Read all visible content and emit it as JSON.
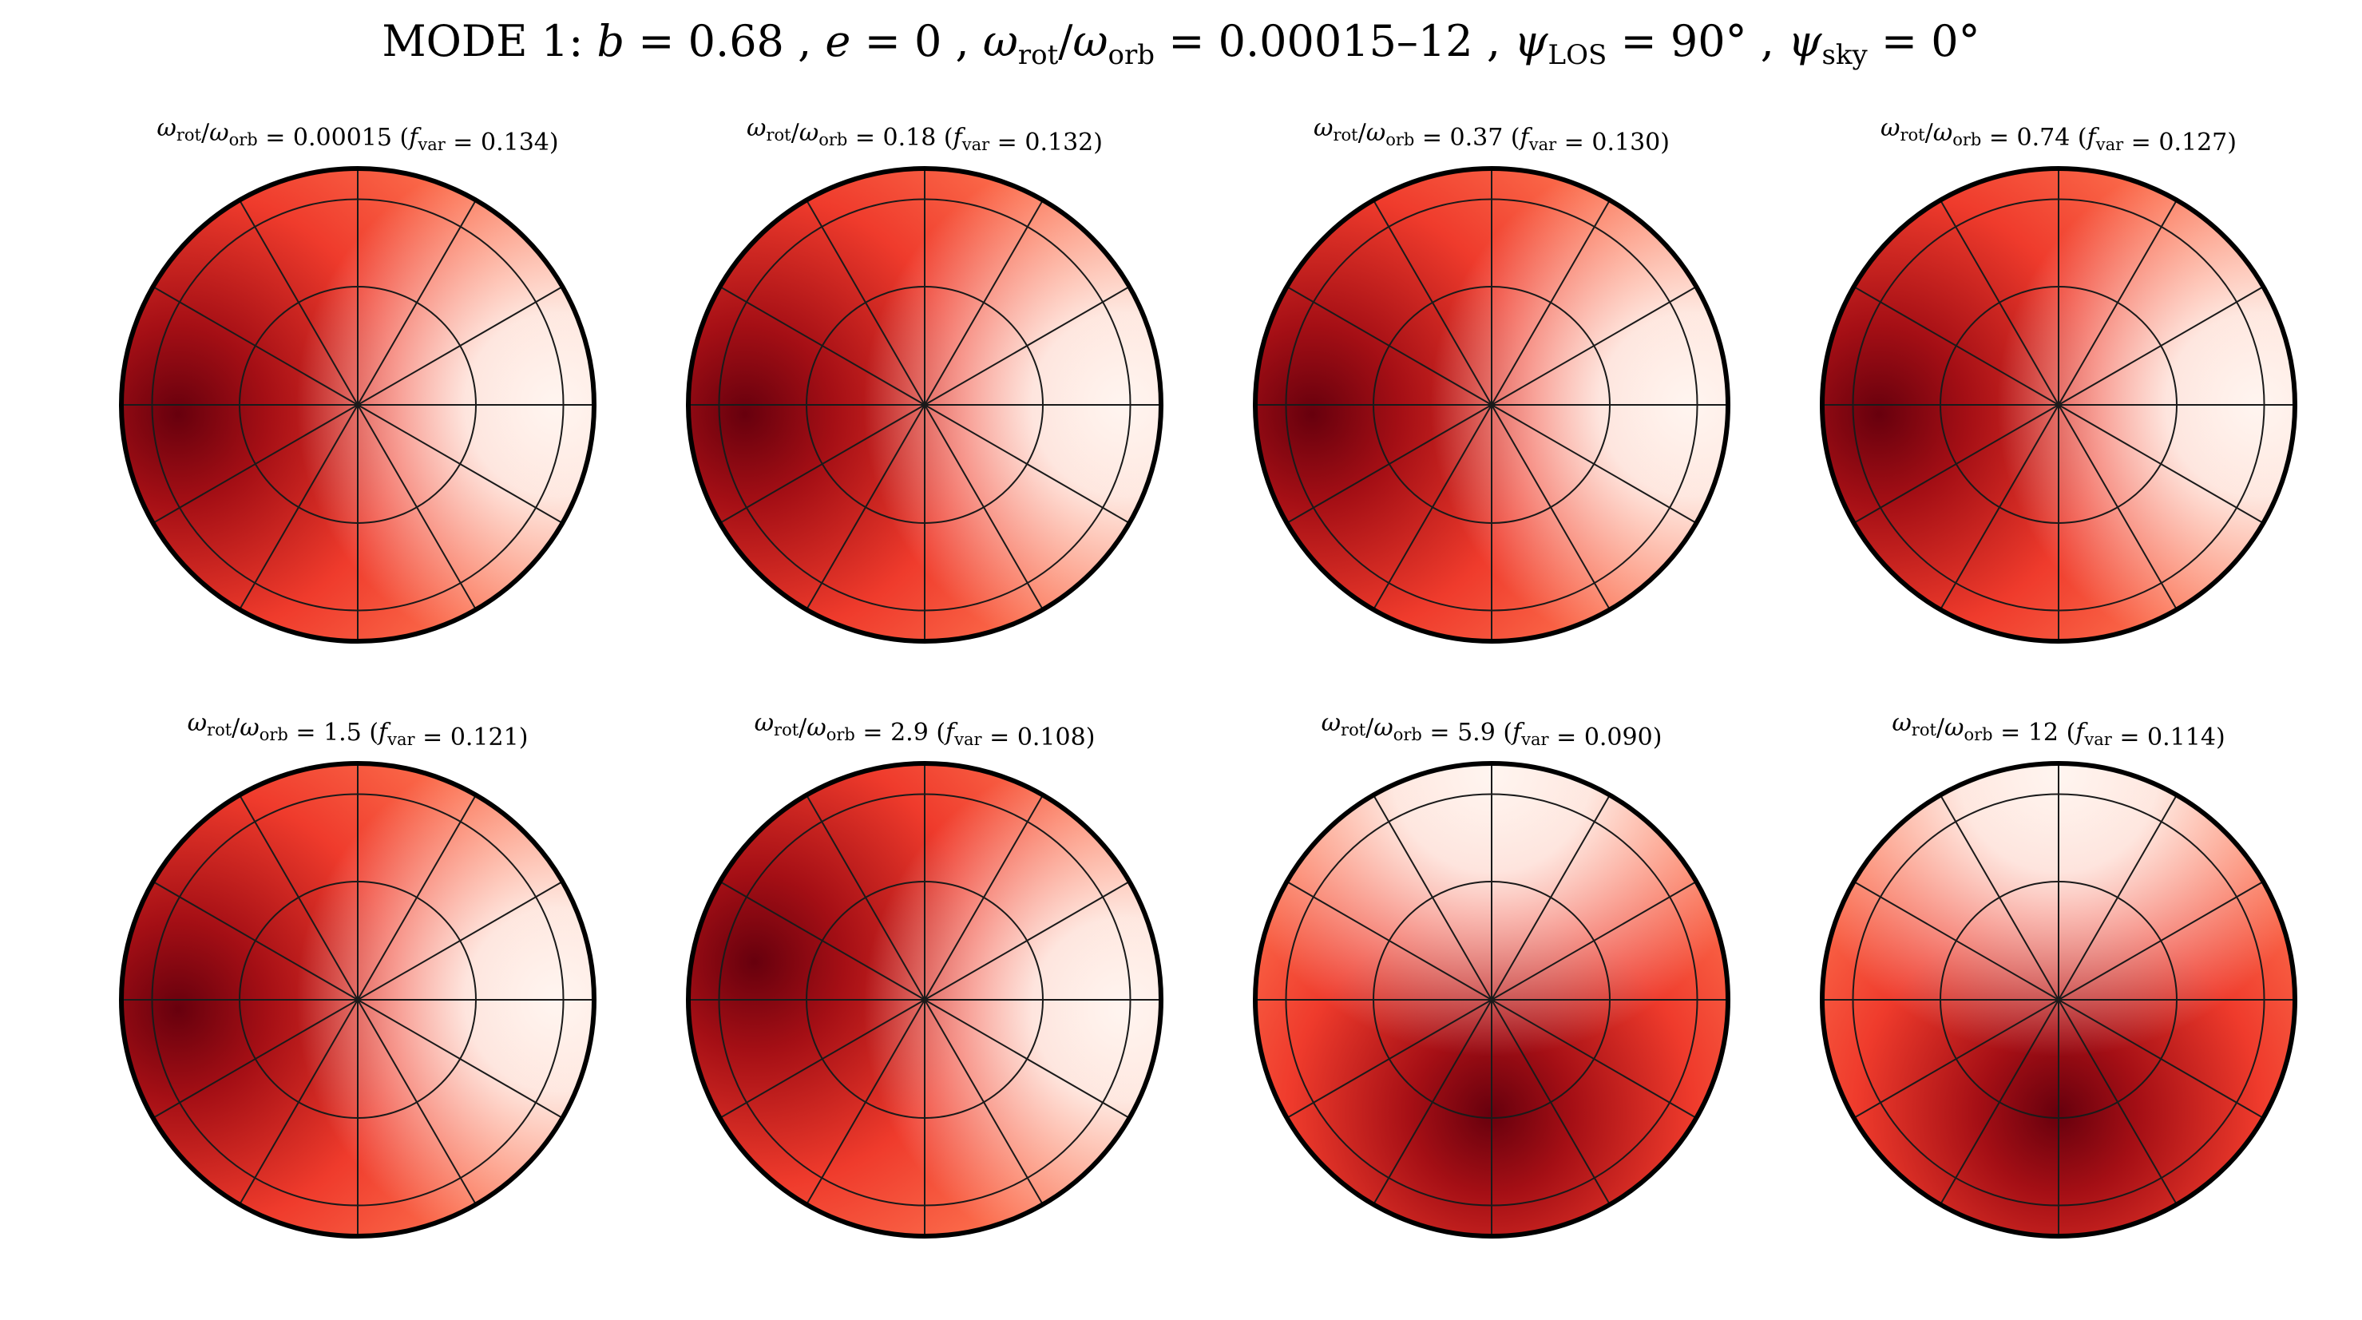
{
  "figure": {
    "title": "MODE 1: b = 0.68, e = 0, ω_rot/ω_orb = 0.00015–12, ψ_LOS = 90°, ψ_sky = 0°",
    "title_parts": {
      "mode": "MODE 1:",
      "b_label": "b",
      "b_value": "0.68",
      "e_label": "e",
      "e_value": "0",
      "ratio_value": "0.00015–12",
      "psi_los_value": "90°",
      "psi_sky_value": "0°"
    },
    "colormap": {
      "name": "Reds",
      "light": "#fff5f0",
      "mid": "#fb6a4a",
      "dark": "#67000d"
    },
    "grid": {
      "latitude_circles": 2,
      "meridian_spokes": 12
    }
  },
  "panels": [
    {
      "ratio": "0.00015",
      "fvar": "0.134",
      "title": "ω_rot/ω_orb = 0.00015 (f_var = 0.134)",
      "hotspot_direction": "left"
    },
    {
      "ratio": "0.18",
      "fvar": "0.132",
      "title": "ω_rot/ω_orb = 0.18 (f_var = 0.132)",
      "hotspot_direction": "left"
    },
    {
      "ratio": "0.37",
      "fvar": "0.130",
      "title": "ω_rot/ω_orb = 0.37 (f_var = 0.130)",
      "hotspot_direction": "left"
    },
    {
      "ratio": "0.74",
      "fvar": "0.127",
      "title": "ω_rot/ω_orb = 0.74 (f_var = 0.127)",
      "hotspot_direction": "left"
    },
    {
      "ratio": "1.5",
      "fvar": "0.121",
      "title": "ω_rot/ω_orb = 1.5 (f_var = 0.121)",
      "hotspot_direction": "left"
    },
    {
      "ratio": "2.9",
      "fvar": "0.108",
      "title": "ω_rot/ω_orb = 2.9 (f_var = 0.108)",
      "hotspot_direction": "upper-left"
    },
    {
      "ratio": "5.9",
      "fvar": "0.090",
      "title": "ω_rot/ω_orb = 5.9 (f_var = 0.090)",
      "hotspot_direction": "bottom"
    },
    {
      "ratio": "12",
      "fvar": "0.114",
      "title": "ω_rot/ω_orb = 12 (f_var = 0.114)",
      "hotspot_direction": "bottom"
    }
  ]
}
